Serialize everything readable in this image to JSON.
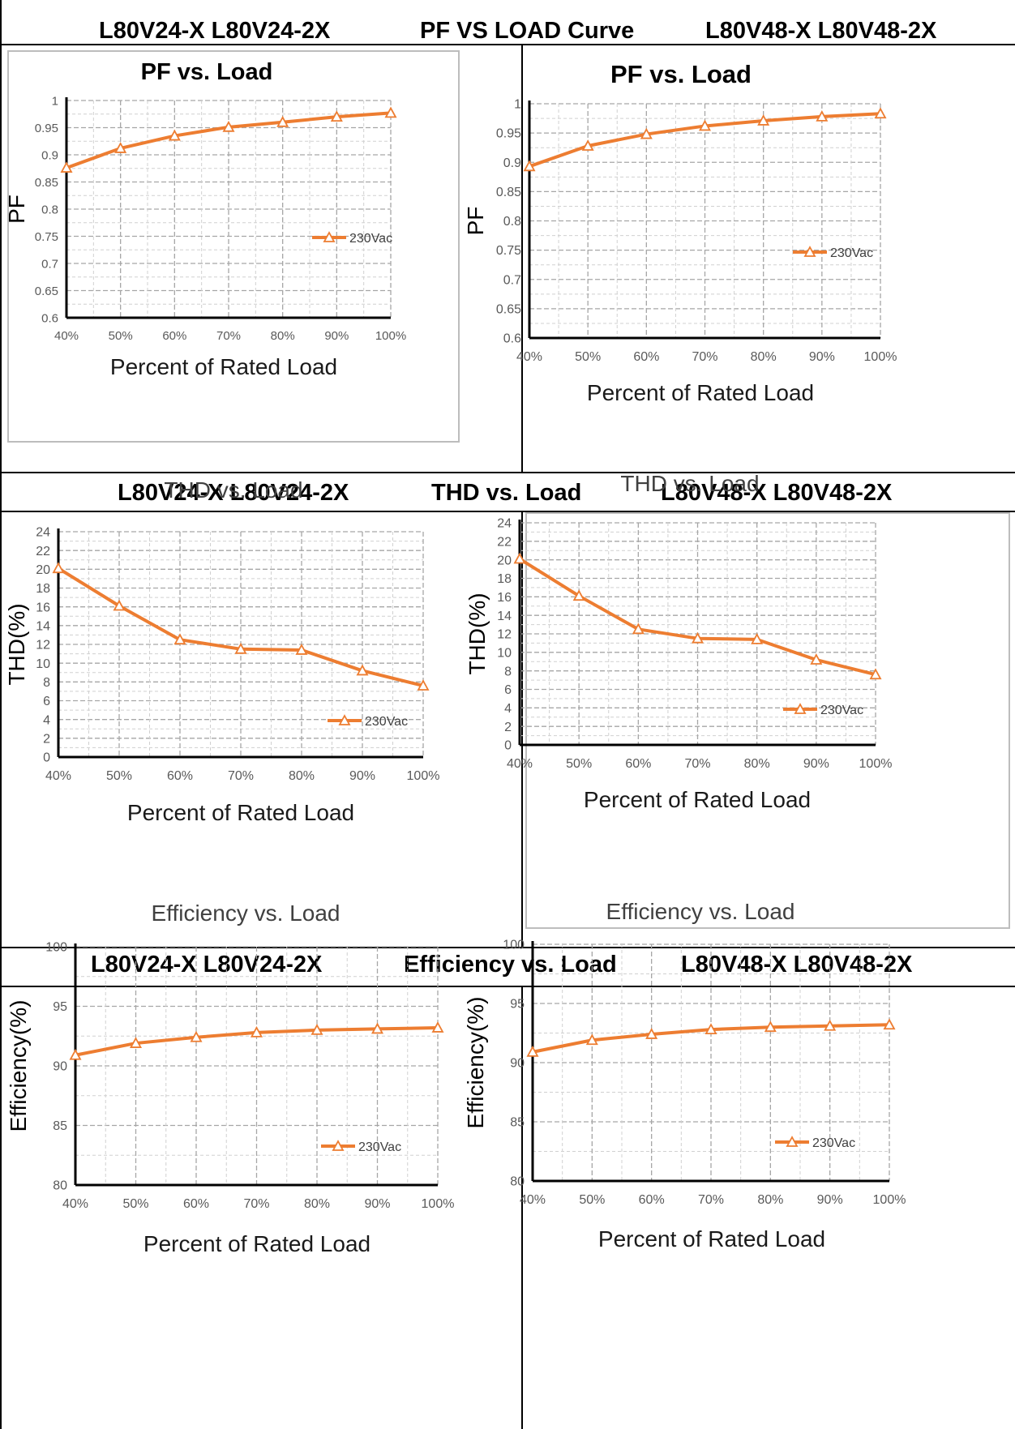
{
  "headers": [
    {
      "left": "L80V24-X  L80V24-2X",
      "center": "PF VS LOAD Curve",
      "right": "L80V48-X  L80V48-2X"
    },
    {
      "left": "L80V24-X  L80V24-2X",
      "center": "THD vs. Load",
      "right": "L80V48-X  L80V48-2X"
    },
    {
      "left": "L80V24-X  L80V24-2X",
      "center": "Efficiency vs. Load",
      "right": "L80V48-X  L80V48-2X"
    }
  ],
  "colors": {
    "series": "#ED7D31",
    "axis": "#000000",
    "grid": "#A6A6A6",
    "tick_text": "#595959",
    "title": "#404040"
  },
  "chart_data": [
    {
      "type": "line",
      "title": "PF vs. Load",
      "xlabel": "Percent of Rated Load",
      "ylabel": "PF",
      "categories": [
        "40%",
        "50%",
        "60%",
        "70%",
        "80%",
        "90%",
        "100%"
      ],
      "ylim": [
        0.6,
        1
      ],
      "yticks": [
        "0.6",
        "0.65",
        "0.7",
        "0.75",
        "0.8",
        "0.85",
        "0.9",
        "0.95",
        "1"
      ],
      "series": [
        {
          "name": "230Vac",
          "values": [
            0.876,
            0.912,
            0.935,
            0.951,
            0.96,
            0.97,
            0.977
          ]
        }
      ],
      "legend": "right",
      "grid": true
    },
    {
      "type": "line",
      "title": "PF vs. Load",
      "xlabel": "Percent of Rated Load",
      "ylabel": "PF",
      "categories": [
        "40%",
        "50%",
        "60%",
        "70%",
        "80%",
        "90%",
        "100%"
      ],
      "ylim": [
        0.6,
        1
      ],
      "yticks": [
        "0.6",
        "0.65",
        "0.7",
        "0.75",
        "0.8",
        "0.85",
        "0.9",
        "0.95",
        "1"
      ],
      "series": [
        {
          "name": "230Vac",
          "values": [
            0.893,
            0.928,
            0.948,
            0.962,
            0.971,
            0.978,
            0.983
          ]
        }
      ],
      "legend": "right",
      "grid": true
    },
    {
      "type": "line",
      "title": "THD vs. Load",
      "xlabel": "Percent of Rated Load",
      "ylabel": "THD(%)",
      "categories": [
        "40%",
        "50%",
        "60%",
        "70%",
        "80%",
        "90%",
        "100%"
      ],
      "ylim": [
        0,
        24
      ],
      "yticks": [
        "0",
        "2",
        "4",
        "6",
        "8",
        "10",
        "12",
        "14",
        "16",
        "18",
        "20",
        "22",
        "24"
      ],
      "series": [
        {
          "name": "230Vac",
          "values": [
            20.1,
            16.1,
            12.5,
            11.5,
            11.4,
            9.2,
            7.6
          ]
        }
      ],
      "legend": "bottom-right",
      "grid": true
    },
    {
      "type": "line",
      "title": "THD vs. Load",
      "xlabel": "Percent of Rated Load",
      "ylabel": "THD(%)",
      "categories": [
        "40%",
        "50%",
        "60%",
        "70%",
        "80%",
        "90%",
        "100%"
      ],
      "ylim": [
        0,
        24
      ],
      "yticks": [
        "0",
        "2",
        "4",
        "6",
        "8",
        "10",
        "12",
        "14",
        "16",
        "18",
        "20",
        "22",
        "24"
      ],
      "series": [
        {
          "name": "230Vac",
          "values": [
            20.1,
            16.1,
            12.5,
            11.5,
            11.4,
            9.2,
            7.6
          ]
        }
      ],
      "legend": "bottom-right",
      "grid": true
    },
    {
      "type": "line",
      "title": "Efficiency vs. Load",
      "xlabel": "Percent of Rated Load",
      "ylabel": "Efficiency(%)",
      "categories": [
        "40%",
        "50%",
        "60%",
        "70%",
        "80%",
        "90%",
        "100%"
      ],
      "ylim": [
        80,
        100
      ],
      "yticks": [
        "80",
        "85",
        "90",
        "95",
        "100"
      ],
      "series": [
        {
          "name": "230Vac",
          "values": [
            90.9,
            91.9,
            92.4,
            92.8,
            93.0,
            93.1,
            93.2
          ]
        }
      ],
      "legend": "bottom-right",
      "grid": true
    },
    {
      "type": "line",
      "title": "Efficiency vs. Load",
      "xlabel": "Percent of Rated Load",
      "ylabel": "Efficiency(%)",
      "categories": [
        "40%",
        "50%",
        "60%",
        "70%",
        "80%",
        "90%",
        "100%"
      ],
      "ylim": [
        80,
        100
      ],
      "yticks": [
        "80",
        "85",
        "90",
        "95",
        "100"
      ],
      "series": [
        {
          "name": "230Vac",
          "values": [
            90.9,
            91.9,
            92.4,
            92.8,
            93.0,
            93.1,
            93.2
          ]
        }
      ],
      "legend": "bottom-right",
      "grid": true
    }
  ]
}
